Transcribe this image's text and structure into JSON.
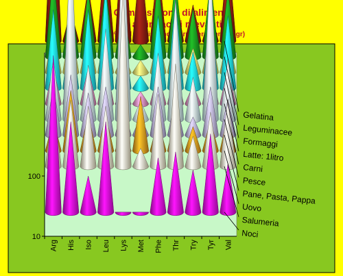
{
  "chart_data": {
    "type": "area",
    "title": [
      "Composizione di alimenti",
      "in aminoacidi rilevanti"
    ],
    "subtitle": "(> 10% del fabbisogno giornaliero per 100 gr)",
    "categories": [
      "Arg",
      "His",
      "Iso",
      "Leu",
      "Lys",
      "Met",
      "Phe",
      "Thr",
      "Try",
      "Tyr",
      "Val"
    ],
    "y_ticks": [
      "10",
      "100"
    ],
    "y_scale": "log",
    "grid": false,
    "legend_position": "right",
    "series": [
      {
        "name": "Noci",
        "color": "#ee10ee",
        "values": [
          2.6,
          1.5,
          0.6,
          1.5,
          0,
          0,
          0.9,
          1.0,
          0.7,
          1.3,
          0.8
        ]
      },
      {
        "name": "Salumeria",
        "color": "#f2ebc8",
        "values": [
          1.0,
          1.1,
          1.0,
          1.0,
          3.0,
          0.3,
          1.2,
          1.7,
          0.5,
          0.9,
          1.1
        ]
      },
      {
        "name": "Uovo",
        "color": "#f0a020",
        "values": [
          0.5,
          1.0,
          0.6,
          0.6,
          0.4,
          0.9,
          0.5,
          0.6,
          0.4,
          0.5,
          0.6
        ]
      },
      {
        "name": "Pane, Pasta, Pappa",
        "color": "#b8b0de",
        "values": [
          0.8,
          1.0,
          0.7,
          0.8,
          0.5,
          0.3,
          0.8,
          0.6,
          0.3,
          0.8,
          0.6
        ]
      },
      {
        "name": "Pesce",
        "color": "#c8eef2",
        "values": [
          1.0,
          3.0,
          0.9,
          1.5,
          3.2,
          0.3,
          1.1,
          2.0,
          0.7,
          2.5,
          1.0
        ]
      },
      {
        "name": "Carni",
        "color": "#e890c0",
        "values": [
          0.6,
          0.8,
          0.6,
          0.7,
          0.3,
          0.2,
          0.5,
          0.6,
          0.3,
          0.7,
          0.6
        ]
      },
      {
        "name": "Latte: 1litro",
        "color": "#20e0f0",
        "values": [
          1.3,
          1.0,
          1.3,
          1.7,
          1.0,
          0.2,
          1.2,
          1.5,
          0.6,
          1.3,
          1.2
        ]
      },
      {
        "name": "Formaggi",
        "color": "#f4f070",
        "values": [
          0.7,
          0.8,
          0.7,
          0.7,
          0.3,
          0.2,
          0.6,
          0.7,
          0.4,
          0.7,
          0.6
        ]
      },
      {
        "name": "Leguminacee",
        "color": "#1a9a20",
        "values": [
          1.4,
          1.0,
          1.1,
          1.2,
          0.8,
          0.2,
          1.3,
          1.3,
          0.8,
          1.3,
          1.1
        ]
      },
      {
        "name": "Gelatina",
        "color": "#8a1c12",
        "values": [
          2.8,
          0.5,
          0.9,
          1.6,
          2.0,
          1.4,
          1.3,
          0.8,
          0.6,
          0.5,
          1.5
        ]
      }
    ]
  },
  "colors": {
    "background": "#ffff00",
    "plot_area": "#88c820",
    "plot_panel": "#c8f8c8",
    "title": "#c0122a"
  }
}
